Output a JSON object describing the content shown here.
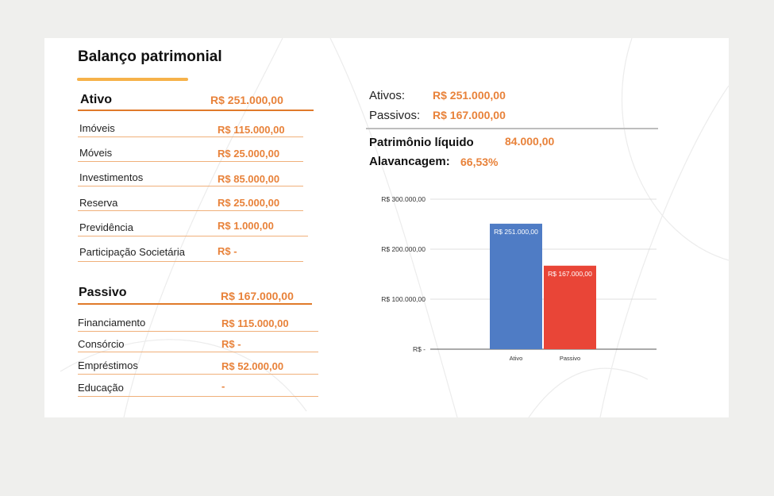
{
  "title": "Balanço patrimonial",
  "ativo": {
    "label": "Ativo",
    "total": "R$ 251.000,00",
    "items": [
      {
        "label": "Imóveis",
        "value": "R$ 115.000,00"
      },
      {
        "label": "Móveis",
        "value": "R$ 25.000,00"
      },
      {
        "label": "Investimentos",
        "value": "R$ 85.000,00"
      },
      {
        "label": "Reserva",
        "value": "R$ 25.000,00"
      },
      {
        "label": "Previdência",
        "value": "R$ 1.000,00"
      },
      {
        "label": "Participação Societária",
        "value": "R$ -"
      }
    ]
  },
  "passivo": {
    "label": "Passivo",
    "total": "R$ 167.000,00",
    "items": [
      {
        "label": "Financiamento",
        "value": "R$ 115.000,00"
      },
      {
        "label": "Consórcio",
        "value": "R$ -"
      },
      {
        "label": "Empréstimos",
        "value": "R$ 52.000,00"
      },
      {
        "label": "Educação",
        "value": "-"
      }
    ]
  },
  "summary": {
    "ativos_label": "Ativos:",
    "ativos_value": "R$ 251.000,00",
    "passivos_label": "Passivos:",
    "passivos_value": "R$ 167.000,00",
    "pl_label": "Patrimônio líquido",
    "pl_value": "84.000,00",
    "alav_label": "Alavancagem:",
    "alav_value": "66,53%"
  },
  "chart_data": {
    "type": "bar",
    "categories": [
      "Ativo",
      "Passivo"
    ],
    "values": [
      251000,
      167000
    ],
    "data_labels": [
      "R$ 251.000,00",
      "R$ 167.000,00"
    ],
    "colors": [
      "#4f7cc5",
      "#e94537"
    ],
    "ylim": [
      0,
      300000
    ],
    "yticks": [
      {
        "value": 0,
        "label": "R$ -"
      },
      {
        "value": 100000,
        "label": "R$ 100.000,00"
      },
      {
        "value": 200000,
        "label": "R$ 200.000,00"
      },
      {
        "value": 300000,
        "label": "R$ 300.000,00"
      }
    ],
    "grid": true,
    "title": "",
    "xlabel": "",
    "ylabel": ""
  }
}
